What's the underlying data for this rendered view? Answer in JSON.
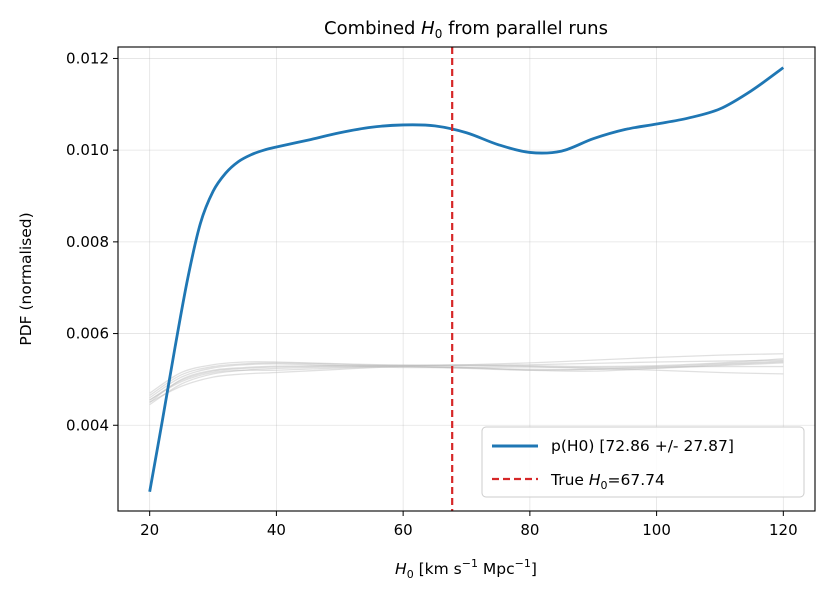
{
  "chart_data": {
    "type": "line",
    "title_prefix": "Combined ",
    "title_symbol": "H",
    "title_subscript": "0",
    "title_suffix": " from parallel runs",
    "xlabel_symbol": "H",
    "xlabel_subscript": "0",
    "xlabel_units_a": " [km s",
    "xlabel_exp_a": "−1",
    "xlabel_units_b": " Mpc",
    "xlabel_exp_b": "−1",
    "xlabel_units_c": "]",
    "ylabel": "PDF (normalised)",
    "xlim": [
      15,
      125
    ],
    "ylim": [
      0.00213,
      0.01225
    ],
    "xticks": [
      20,
      40,
      60,
      80,
      100,
      120
    ],
    "yticks": [
      0.004,
      0.006,
      0.008,
      0.01,
      0.012
    ],
    "ytick_labels": [
      "0.004",
      "0.006",
      "0.008",
      "0.010",
      "0.012"
    ],
    "grid": true,
    "legend_position": "lower-right",
    "colors": {
      "combined": "#1f77b4",
      "true_line": "#d62728",
      "runs": "#bbbbbb"
    },
    "series": [
      {
        "name": "p(H0) [72.86 +/- 27.87]",
        "role": "combined",
        "x": [
          20,
          22,
          24,
          26,
          28,
          30,
          32,
          34,
          36,
          38,
          40,
          45,
          50,
          55,
          60,
          65,
          70,
          75,
          80,
          85,
          90,
          95,
          100,
          105,
          110,
          115,
          120
        ],
        "y": [
          0.00255,
          0.0041,
          0.0057,
          0.0072,
          0.0084,
          0.0091,
          0.0095,
          0.00975,
          0.0099,
          0.01,
          0.01007,
          0.01022,
          0.01038,
          0.0105,
          0.01055,
          0.01053,
          0.01038,
          0.01012,
          0.00995,
          0.00998,
          0.01025,
          0.01045,
          0.01057,
          0.0107,
          0.0109,
          0.0113,
          0.0118
        ]
      }
    ],
    "runs_x": [
      20,
      25,
      30,
      35,
      40,
      50,
      60,
      70,
      80,
      90,
      100,
      110,
      120
    ],
    "runs": [
      [
        0.0045,
        0.00485,
        0.00505,
        0.00512,
        0.00515,
        0.00522,
        0.00528,
        0.00526,
        0.0052,
        0.00518,
        0.00524,
        0.0053,
        0.00536
      ],
      [
        0.00455,
        0.00495,
        0.00515,
        0.0052,
        0.0052,
        0.00525,
        0.00529,
        0.00532,
        0.0053,
        0.00528,
        0.0053,
        0.00536,
        0.00545
      ],
      [
        0.0046,
        0.00505,
        0.00525,
        0.00532,
        0.00534,
        0.0053,
        0.00526,
        0.00526,
        0.00527,
        0.00524,
        0.0052,
        0.00515,
        0.00512
      ],
      [
        0.0047,
        0.00515,
        0.00532,
        0.00538,
        0.00538,
        0.00534,
        0.00531,
        0.0053,
        0.00532,
        0.00535,
        0.00538,
        0.0054,
        0.00542
      ],
      [
        0.00445,
        0.0049,
        0.00512,
        0.0052,
        0.00524,
        0.00527,
        0.00528,
        0.00524,
        0.0052,
        0.00522,
        0.00527,
        0.00528,
        0.00528
      ],
      [
        0.0045,
        0.005,
        0.0052,
        0.00526,
        0.00529,
        0.0053,
        0.0053,
        0.00532,
        0.00536,
        0.00542,
        0.00548,
        0.00553,
        0.00556
      ],
      [
        0.00465,
        0.0051,
        0.00528,
        0.00534,
        0.00536,
        0.00533,
        0.00529,
        0.00525,
        0.00522,
        0.00522,
        0.00525,
        0.00532,
        0.00538
      ],
      [
        0.00455,
        0.00498,
        0.00518,
        0.00524,
        0.00527,
        0.00529,
        0.00531,
        0.0053,
        0.00528,
        0.00526,
        0.00528,
        0.00534,
        0.0054
      ]
    ],
    "true_value": 67.74,
    "legend": [
      {
        "label": "p(H0) [72.86 +/- 27.87]"
      },
      {
        "label_prefix": "True ",
        "label_symbol": "H",
        "label_subscript": "0",
        "label_suffix": "=67.74"
      }
    ]
  }
}
